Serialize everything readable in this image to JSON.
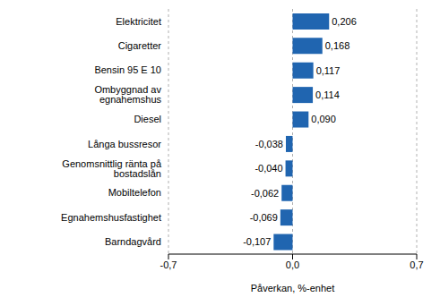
{
  "chart_data": {
    "type": "bar",
    "orientation": "horizontal",
    "categories": [
      "Elektricitet",
      "Cigaretter",
      "Bensin 95 E 10",
      "Ombyggnad av egnahemshus",
      "Diesel",
      "Långa bussresor",
      "Genomsnittlig ränta på bostadslån",
      "Mobiltelefon",
      "Egnahemshusfastighet",
      "Barndagvård"
    ],
    "values": [
      0.206,
      0.168,
      0.117,
      0.114,
      0.09,
      -0.038,
      -0.04,
      -0.062,
      -0.069,
      -0.107
    ],
    "value_labels": [
      "0,206",
      "0,168",
      "0,117",
      "0,114",
      "0,090",
      "-0,038",
      "-0,040",
      "-0,062",
      "-0,069",
      "-0,107"
    ],
    "data_labels": true,
    "color": "#2065b0",
    "xlabel": "Påverkan, %-enhet",
    "xlim": [
      -0.7,
      0.7
    ],
    "xticks": [
      {
        "value": -0.7,
        "label": "-0,7"
      },
      {
        "value": 0,
        "label": "0,0"
      },
      {
        "value": 0.7,
        "label": "0,7"
      }
    ],
    "grid": true
  }
}
